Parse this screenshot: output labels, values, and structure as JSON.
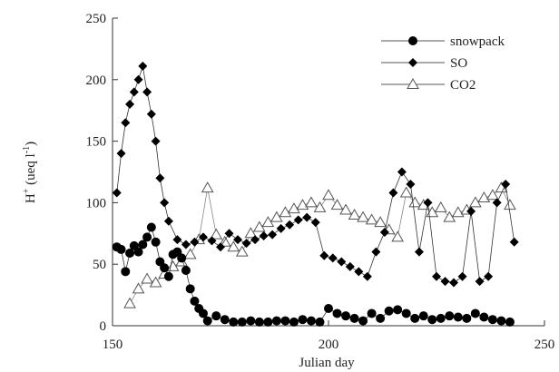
{
  "chart_data": {
    "type": "line",
    "xlabel": "Julian day",
    "ylabel": "H",
    "ylabel_sup": "+",
    "ylabel_unit": " (ueq l",
    "ylabel_unit_sup": "-1",
    "ylabel_close": ")",
    "xlim": [
      150,
      250
    ],
    "ylim": [
      0,
      250
    ],
    "xticks": [
      "150",
      "200",
      "250"
    ],
    "yticks": [
      "0",
      "50",
      "100",
      "150",
      "200",
      "250"
    ],
    "grid": false,
    "legend_position": "top-right",
    "series": [
      {
        "name": "snowpack",
        "marker": "circle-filled",
        "color": "#000000",
        "x": [
          151,
          152,
          153,
          154,
          155,
          156,
          157,
          158,
          159,
          160,
          161,
          162,
          163,
          164,
          165,
          166,
          167,
          168,
          169,
          170,
          171,
          172,
          174,
          176,
          178,
          180,
          182,
          184,
          186,
          188,
          190,
          192,
          194,
          196,
          198,
          200,
          202,
          204,
          206,
          208,
          210,
          212,
          214,
          216,
          218,
          220,
          222,
          224,
          226,
          228,
          230,
          232,
          234,
          236,
          238,
          240,
          242
        ],
        "y": [
          64,
          62,
          44,
          59,
          65,
          60,
          66,
          72,
          80,
          68,
          52,
          47,
          40,
          58,
          60,
          55,
          45,
          30,
          20,
          14,
          10,
          4,
          8,
          5,
          3,
          3,
          4,
          3,
          3,
          4,
          4,
          3,
          5,
          4,
          3,
          14,
          10,
          8,
          6,
          4,
          10,
          6,
          12,
          13,
          10,
          6,
          8,
          5,
          6,
          8,
          7,
          6,
          10,
          7,
          5,
          4,
          3
        ]
      },
      {
        "name": "SO",
        "marker": "diamond-filled",
        "color": "#000000",
        "x": [
          151,
          152,
          153,
          154,
          155,
          156,
          157,
          158,
          159,
          160,
          161,
          162,
          163,
          165,
          167,
          169,
          171,
          173,
          175,
          177,
          179,
          181,
          183,
          185,
          187,
          189,
          191,
          193,
          195,
          197,
          199,
          201,
          203,
          205,
          207,
          209,
          211,
          213,
          215,
          217,
          219,
          221,
          223,
          225,
          227,
          229,
          231,
          233,
          235,
          237,
          239,
          241,
          243
        ],
        "y": [
          108,
          140,
          165,
          180,
          190,
          200,
          211,
          190,
          172,
          150,
          120,
          100,
          85,
          70,
          66,
          68,
          72,
          69,
          64,
          75,
          70,
          67,
          70,
          73,
          74,
          79,
          82,
          86,
          88,
          84,
          57,
          55,
          52,
          48,
          44,
          40,
          60,
          76,
          108,
          125,
          115,
          60,
          100,
          40,
          36,
          35,
          40,
          93,
          36,
          40,
          100,
          115,
          68
        ]
      },
      {
        "name": "CO2",
        "marker": "triangle-open",
        "color": "#555555",
        "x": [
          154,
          156,
          158,
          160,
          162,
          164,
          166,
          168,
          170,
          172,
          174,
          176,
          178,
          180,
          182,
          184,
          186,
          188,
          190,
          192,
          194,
          196,
          198,
          200,
          202,
          204,
          206,
          208,
          210,
          212,
          214,
          216,
          218,
          220,
          222,
          224,
          226,
          228,
          230,
          232,
          234,
          236,
          238,
          240,
          242
        ],
        "y": [
          18,
          30,
          38,
          35,
          42,
          48,
          52,
          58,
          70,
          112,
          74,
          68,
          64,
          60,
          75,
          80,
          84,
          88,
          92,
          95,
          98,
          100,
          96,
          106,
          98,
          94,
          90,
          88,
          86,
          84,
          78,
          72,
          108,
          100,
          98,
          92,
          96,
          88,
          92,
          94,
          100,
          104,
          106,
          112,
          98
        ]
      }
    ]
  }
}
